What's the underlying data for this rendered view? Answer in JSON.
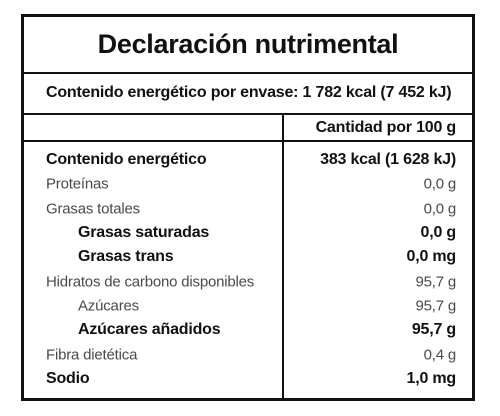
{
  "title": "Declaración nutrimental",
  "energy_per_package": "Contenido energético por envase: 1 782 kcal (7 452 kJ)",
  "column_header": "Cantidad por 100 g",
  "rows": [
    {
      "name": "Contenido energético",
      "value": "383 kcal (1 628 kJ)"
    },
    {
      "name": "Proteínas",
      "value": "0,0 g"
    },
    {
      "name": "Grasas totales",
      "value": "0,0 g"
    },
    {
      "name": "Grasas saturadas",
      "value": "0,0 g"
    },
    {
      "name": "Grasas trans",
      "value": "0,0 mg"
    },
    {
      "name": "Hidratos de carbono disponibles",
      "value": "95,7 g"
    },
    {
      "name": "Azúcares",
      "value": "95,7 g"
    },
    {
      "name": "Azúcares añadidos",
      "value": "95,7 g"
    },
    {
      "name": "Fibra dietética",
      "value": "0,4 g"
    },
    {
      "name": "Sodio",
      "value": "1,0 mg"
    }
  ]
}
